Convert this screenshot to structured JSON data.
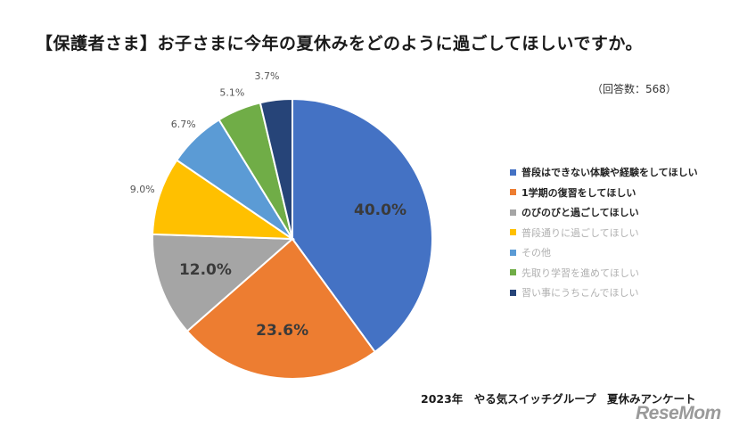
{
  "title": "【保護者さま】お子さまに今年の夏休みをどのように過ごしてほしいですか。",
  "responses_note": "（回答数：568）",
  "source": "2023年　やる気スイッチグループ　夏休みアンケート",
  "logo_text": "ReseMom",
  "chart_data": {
    "type": "pie",
    "title": "【保護者さま】お子さまに今年の夏休みをどのように過ごしてほしいですか。",
    "legend_position": "right",
    "start": "12 o'clock, clockwise",
    "slices": [
      {
        "label": "普段はできない体験や経験をしてほしい",
        "value": 40.0,
        "display": "40.0%",
        "color": "#4472C4",
        "label_style": "large-inside"
      },
      {
        "label": "1学期の復習をしてほしい",
        "value": 23.6,
        "display": "23.6%",
        "color": "#ED7D31",
        "label_style": "large-inside"
      },
      {
        "label": "のびのびと過ごしてほしい",
        "value": 12.0,
        "display": "12.0%",
        "color": "#A5A5A5",
        "label_style": "large-inside"
      },
      {
        "label": "普段通りに過ごしてほしい",
        "value": 9.0,
        "display": "9.0%",
        "color": "#FFC000",
        "label_style": "small-outside"
      },
      {
        "label": "その他",
        "value": 6.7,
        "display": "6.7%",
        "color": "#5B9BD5",
        "label_style": "small-outside"
      },
      {
        "label": "先取り学習を進めてほしい",
        "value": 5.1,
        "display": "5.1%",
        "color": "#70AD47",
        "label_style": "small-outside"
      },
      {
        "label": "習い事にうちこんでほしい",
        "value": 3.7,
        "display": "3.7%",
        "color": "#264478",
        "label_style": "small-outside"
      }
    ],
    "legend_dimmed": [
      "普段通りに過ごしてほしい",
      "その他",
      "先取り学習を進めてほしい",
      "習い事にうちこんでほしい"
    ]
  }
}
